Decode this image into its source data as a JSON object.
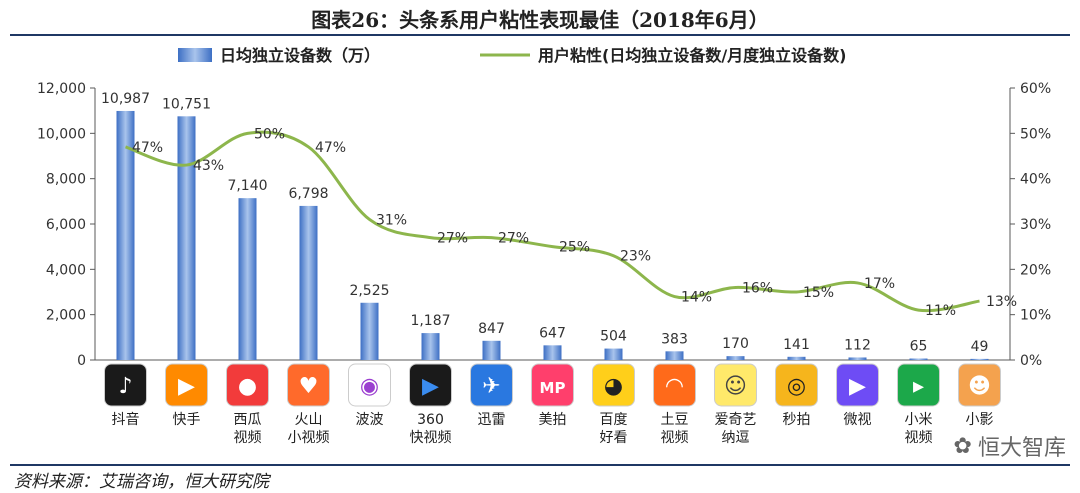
{
  "title": "图表26：头条系用户粘性表现最佳（2018年6月）",
  "source": "资料来源：艾瑞咨询，恒大研究院",
  "watermark": "恒大智库",
  "colors": {
    "bar": "#3d6fc4",
    "bar_light": "#a9c4ec",
    "line": "#8db64c",
    "axis": "#595959"
  },
  "chart_data": {
    "type": "bar",
    "legend": [
      "日均独立设备数（万）",
      "用户粘性(日均独立设备数/月度独立设备数)"
    ],
    "legend_position": "top",
    "categories": [
      "抖音",
      "快手",
      "西瓜视频",
      "火山小视频",
      "波波",
      "360快视频",
      "迅雷",
      "美拍",
      "百度好看",
      "土豆视频",
      "爱奇艺纳逗",
      "秒拍",
      "微视",
      "小米视频",
      "小影"
    ],
    "category_label_lines": [
      [
        "抖音"
      ],
      [
        "快手"
      ],
      [
        "西瓜",
        "视频"
      ],
      [
        "火山",
        "小视频"
      ],
      [
        "波波"
      ],
      [
        "360",
        "快视频"
      ],
      [
        "迅雷"
      ],
      [
        "美拍"
      ],
      [
        "百度",
        "好看"
      ],
      [
        "土豆",
        "视频"
      ],
      [
        "爱奇艺",
        "纳逗"
      ],
      [
        "秒拍"
      ],
      [
        "微视"
      ],
      [
        "小米",
        "视频"
      ],
      [
        "小影"
      ]
    ],
    "series": [
      {
        "name": "日均独立设备数（万）",
        "type": "bar",
        "axis": "left",
        "values": [
          10987,
          10751,
          7140,
          6798,
          2525,
          1187,
          847,
          647,
          504,
          383,
          170,
          141,
          112,
          65,
          49
        ],
        "labels": [
          "10,987",
          "10,751",
          "7,140",
          "6,798",
          "2,525",
          "1,187",
          "847",
          "647",
          "504",
          "383",
          "170",
          "141",
          "112",
          "65",
          "49"
        ]
      },
      {
        "name": "用户粘性(日均独立设备数/月度独立设备数)",
        "type": "line",
        "axis": "right",
        "values": [
          47,
          43,
          50,
          47,
          31,
          27,
          27,
          25,
          23,
          14,
          16,
          15,
          17,
          11,
          13
        ],
        "labels": [
          "47%",
          "43%",
          "50%",
          "47%",
          "31%",
          "27%",
          "27%",
          "25%",
          "23%",
          "14%",
          "16%",
          "15%",
          "17%",
          "11%",
          "13%"
        ]
      }
    ],
    "y_left": {
      "min": 0,
      "max": 12000,
      "ticks": [
        "0",
        "2,000",
        "4,000",
        "6,000",
        "8,000",
        "10,000",
        "12,000"
      ]
    },
    "y_right": {
      "min": 0,
      "max": 60,
      "ticks": [
        "0%",
        "10%",
        "20%",
        "30%",
        "40%",
        "50%",
        "60%"
      ]
    },
    "grid": false,
    "app_icons": [
      {
        "name": "douyin",
        "bg": "#1a1a1a",
        "fg": "#ffffff",
        "glyph": "♪"
      },
      {
        "name": "kuaishou",
        "bg": "#ff8a00",
        "fg": "#ffffff",
        "glyph": "▶"
      },
      {
        "name": "xigua",
        "bg": "#f23b3b",
        "fg": "#ffffff",
        "glyph": "●"
      },
      {
        "name": "huoshan",
        "bg": "#ff6a2b",
        "fg": "#ffffff",
        "glyph": "♥"
      },
      {
        "name": "bobo",
        "bg": "#ffffff",
        "fg": "#9b3fd0",
        "glyph": "◉"
      },
      {
        "name": "360",
        "bg": "#1a1a1a",
        "fg": "#3a8cf0",
        "glyph": "▶"
      },
      {
        "name": "xunlei",
        "bg": "#2a78e0",
        "fg": "#ffffff",
        "glyph": "✈"
      },
      {
        "name": "meipai",
        "bg": "#ff3f6c",
        "fg": "#ffffff",
        "glyph": "MP"
      },
      {
        "name": "haokan",
        "bg": "#ffcf1a",
        "fg": "#222222",
        "glyph": "◕"
      },
      {
        "name": "tudou",
        "bg": "#ff6a1a",
        "fg": "#ffffff",
        "glyph": "◠"
      },
      {
        "name": "nadou",
        "bg": "#ffe96a",
        "fg": "#444444",
        "glyph": "☺"
      },
      {
        "name": "miaopai",
        "bg": "#f6b51c",
        "fg": "#222222",
        "glyph": "◎"
      },
      {
        "name": "weishi",
        "bg": "#6e4cf5",
        "fg": "#ffffff",
        "glyph": "▶"
      },
      {
        "name": "xiaomi",
        "bg": "#1ca84a",
        "fg": "#ffffff",
        "glyph": "▸"
      },
      {
        "name": "xiaoying",
        "bg": "#f4a24e",
        "fg": "#ffffff",
        "glyph": "☻"
      }
    ]
  }
}
